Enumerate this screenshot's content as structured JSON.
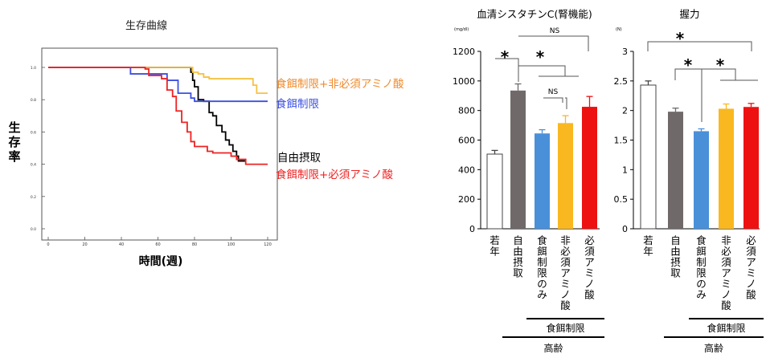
{
  "figure": {
    "survival": {
      "title": "生存曲線",
      "ylabel_chars": [
        "生",
        "存",
        "率"
      ],
      "xlabel": "時間(週)"
    },
    "cystatin": {
      "title": "血清シスタチンC(腎機能)",
      "unit": "(mg/dl)"
    },
    "grip": {
      "title": "握力",
      "unit": "(N)"
    },
    "groups": {
      "young": "若年",
      "old": "高齢",
      "dr": "食餌制限"
    },
    "sig": {
      "star": "*",
      "ns": "NS"
    }
  },
  "chart_data": [
    {
      "type": "line",
      "title": "生存曲線",
      "xlabel": "時間(週)",
      "ylabel": "生存率",
      "xlim": [
        0,
        120
      ],
      "ylim": [
        0,
        1.0
      ],
      "xticks": [
        "0",
        "20",
        "40",
        "60",
        "80",
        "100",
        "120"
      ],
      "yticks": [
        "0.0",
        "0.2",
        "0.4",
        "0.6",
        "0.8",
        "1.0"
      ],
      "series": [
        {
          "name": "自由摂取",
          "color": "#000000",
          "points": [
            [
              0,
              1.0
            ],
            [
              75,
              1.0
            ],
            [
              78,
              0.97
            ],
            [
              79,
              0.92
            ],
            [
              80,
              0.88
            ],
            [
              82,
              0.8
            ],
            [
              85,
              0.79
            ],
            [
              88,
              0.72
            ],
            [
              90,
              0.7
            ],
            [
              92,
              0.64
            ],
            [
              95,
              0.6
            ],
            [
              97,
              0.55
            ],
            [
              99,
              0.52
            ],
            [
              101,
              0.48
            ],
            [
              103,
              0.45
            ],
            [
              104,
              0.42
            ],
            [
              108,
              0.42
            ]
          ]
        },
        {
          "name": "食餌制限+非必須アミノ酸",
          "color": "#f5c242",
          "points": [
            [
              0,
              1.0
            ],
            [
              78,
              1.0
            ],
            [
              79,
              0.97
            ],
            [
              82,
              0.96
            ],
            [
              85,
              0.94
            ],
            [
              88,
              0.93
            ],
            [
              110,
              0.93
            ],
            [
              112,
              0.89
            ],
            [
              114,
              0.84
            ],
            [
              120,
              0.84
            ]
          ]
        },
        {
          "name": "食餌制限",
          "color": "#3b4fe0",
          "points": [
            [
              0,
              1.0
            ],
            [
              43,
              1.0
            ],
            [
              45,
              0.96
            ],
            [
              63,
              0.96
            ],
            [
              65,
              0.92
            ],
            [
              69,
              0.92
            ],
            [
              71,
              0.84
            ],
            [
              76,
              0.84
            ],
            [
              78,
              0.81
            ],
            [
              80,
              0.79
            ],
            [
              120,
              0.79
            ]
          ]
        },
        {
          "name": "食餌制限+必須アミノ酸",
          "color": "#ee2222",
          "points": [
            [
              0,
              1.0
            ],
            [
              51,
              1.0
            ],
            [
              53,
              0.99
            ],
            [
              55,
              0.95
            ],
            [
              60,
              0.95
            ],
            [
              62,
              0.93
            ],
            [
              65,
              0.86
            ],
            [
              68,
              0.82
            ],
            [
              70,
              0.73
            ],
            [
              73,
              0.66
            ],
            [
              76,
              0.6
            ],
            [
              78,
              0.54
            ],
            [
              80,
              0.51
            ],
            [
              84,
              0.51
            ],
            [
              87,
              0.48
            ],
            [
              90,
              0.47
            ],
            [
              95,
              0.47
            ],
            [
              100,
              0.45
            ],
            [
              103,
              0.43
            ],
            [
              108,
              0.4
            ],
            [
              120,
              0.4
            ]
          ]
        }
      ]
    },
    {
      "type": "bar",
      "title": "血清シスタチンC(腎機能)",
      "ylabel": "(mg/dl)",
      "ylim": [
        0,
        1200
      ],
      "yticks": [
        "0",
        "200",
        "400",
        "600",
        "800",
        "1000",
        "1200"
      ],
      "categories": [
        "若年",
        "自由摂取",
        "食餌制限のみ",
        "非必須アミノ酸",
        "必須アミノ酸"
      ],
      "values": [
        505,
        935,
        645,
        715,
        825
      ],
      "errors": [
        25,
        45,
        25,
        50,
        70
      ],
      "colors": [
        "#ffffff",
        "#6f6a69",
        "#4a90d9",
        "#f9b820",
        "#ee1111"
      ]
    },
    {
      "type": "bar",
      "title": "握力",
      "ylabel": "(N)",
      "ylim": [
        0,
        3
      ],
      "yticks": [
        "0",
        "0.5",
        "1",
        "1.5",
        "2",
        "2.5",
        "3"
      ],
      "categories": [
        "若年",
        "自由摂取",
        "食餌制限のみ",
        "非必須アミノ酸",
        "必須アミノ酸"
      ],
      "values": [
        2.43,
        1.98,
        1.65,
        2.03,
        2.06
      ],
      "errors": [
        0.07,
        0.06,
        0.04,
        0.08,
        0.06
      ],
      "colors": [
        "#ffffff",
        "#6f6a69",
        "#4a90d9",
        "#f9b820",
        "#ee1111"
      ]
    }
  ]
}
